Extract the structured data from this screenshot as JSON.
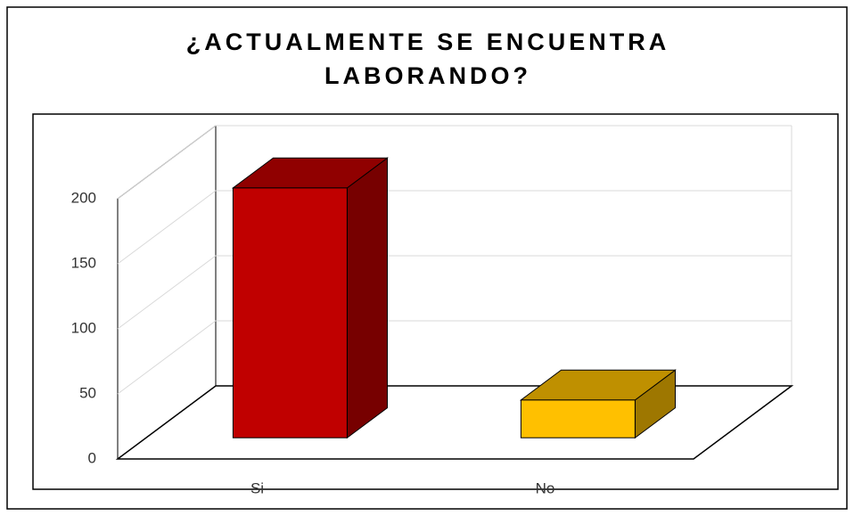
{
  "chart_data": {
    "type": "bar3d",
    "title": "¿ACTUALMENTE SE ENCUENTRA LABORANDO?",
    "categories": [
      "Si",
      "No"
    ],
    "values": [
      192,
      29
    ],
    "colors": [
      "#c00000",
      "#ffc000"
    ],
    "ylim": [
      0,
      200
    ],
    "yticks": [
      0,
      50,
      100,
      150,
      200
    ],
    "grid": true
  }
}
